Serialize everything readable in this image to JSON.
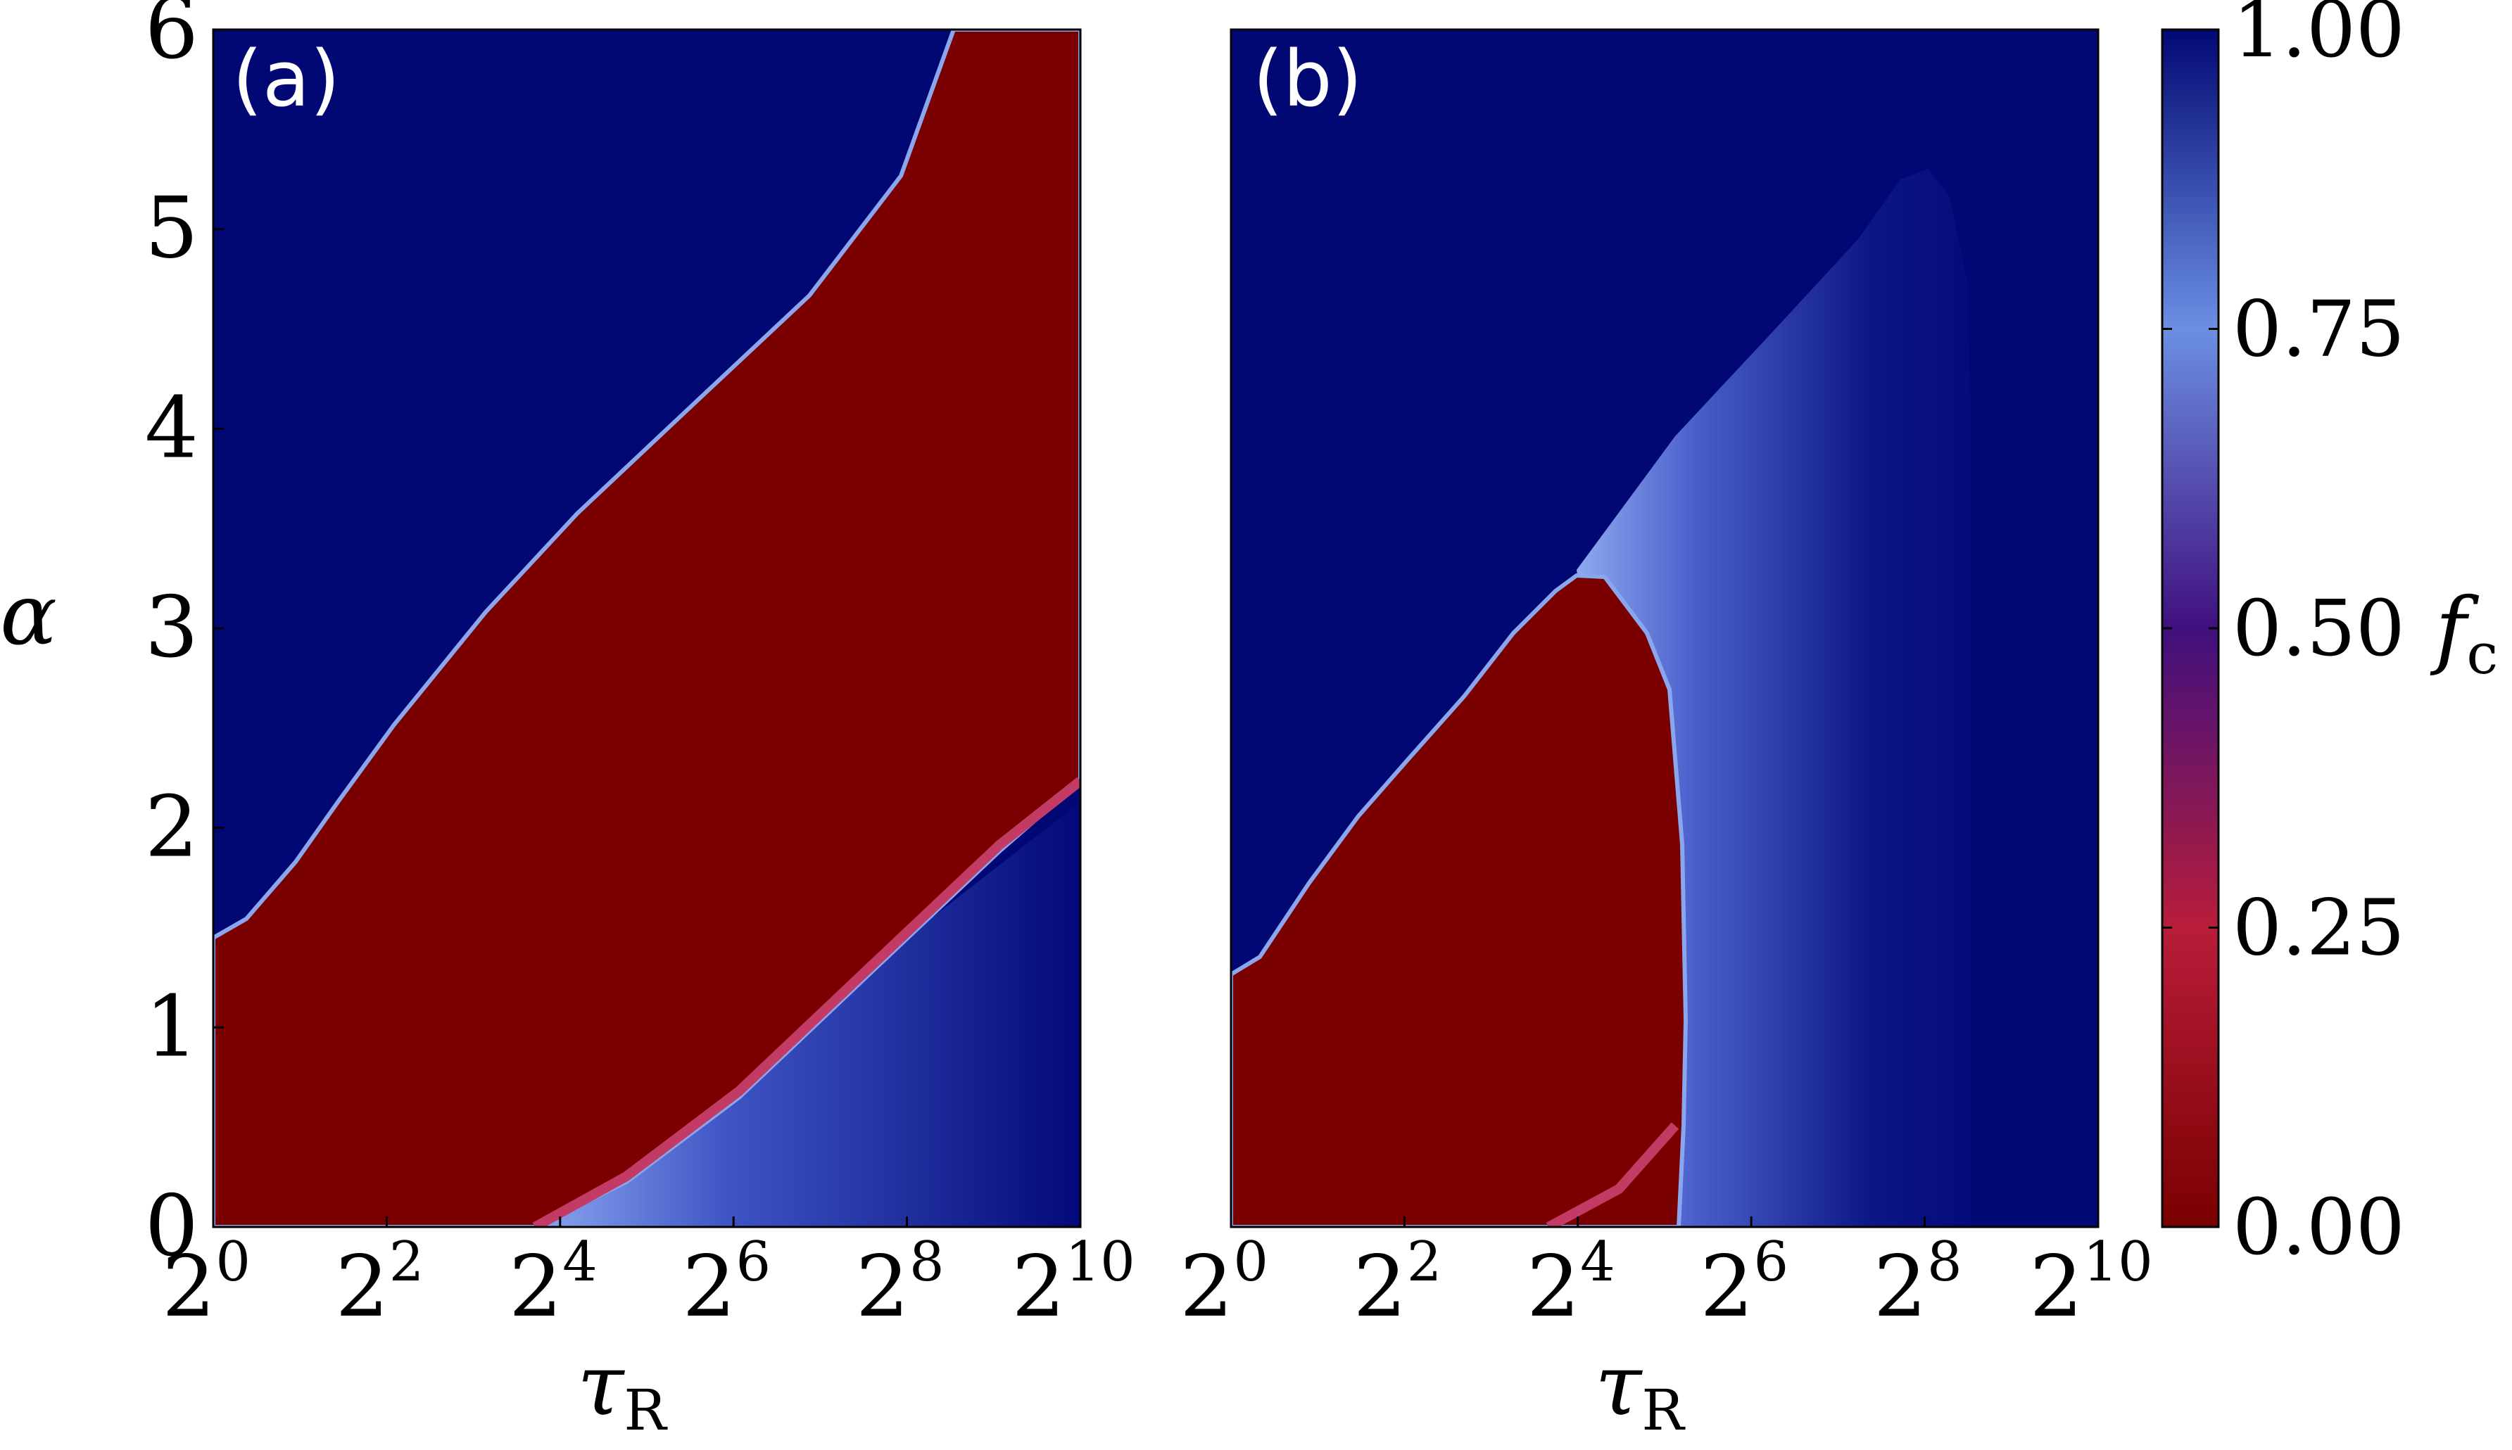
{
  "chart_data": {
    "type": "heatmap",
    "colorbar": {
      "label": "f",
      "label_sub": "c",
      "ticks": [
        "0.00",
        "0.25",
        "0.50",
        "0.75",
        "1.00"
      ],
      "range": [
        0,
        1
      ],
      "colormap": [
        {
          "value": 0.0,
          "color": "#7a0000"
        },
        {
          "value": 0.25,
          "color": "#b81d3a"
        },
        {
          "value": 0.5,
          "color": "#40107e"
        },
        {
          "value": 0.75,
          "color": "#6b8fe3"
        },
        {
          "value": 1.0,
          "color": "#020873"
        }
      ]
    },
    "panels": [
      {
        "label": "(a)",
        "x_axis": {
          "label": "τ",
          "label_sub": "R",
          "scale": "log2",
          "range": [
            1,
            1024
          ],
          "ticks": [
            {
              "base": "2",
              "exp": "0"
            },
            {
              "base": "2",
              "exp": "2"
            },
            {
              "base": "2",
              "exp": "4"
            },
            {
              "base": "2",
              "exp": "6"
            },
            {
              "base": "2",
              "exp": "8"
            },
            {
              "base": "2",
              "exp": "10"
            }
          ]
        },
        "y_axis": {
          "label": "α",
          "range": [
            0,
            6
          ],
          "ticks": [
            "0",
            "1",
            "2",
            "3",
            "4",
            "5",
            "6"
          ]
        },
        "regions": [
          {
            "name": "upper",
            "f_c": 1.0
          },
          {
            "name": "band",
            "f_c": 0.0,
            "upper_boundary": [
              [
                1,
                1.45
              ],
              [
                4,
                2.4
              ],
              [
                16,
                3.5
              ],
              [
                64,
                4.65
              ],
              [
                256,
                5.55
              ],
              [
                362,
                6.0
              ]
            ],
            "lower_boundary": [
              [
                11,
                0.0
              ],
              [
                32,
                0.55
              ],
              [
                128,
                1.15
              ],
              [
                1024,
                2.1
              ]
            ]
          },
          {
            "name": "lower",
            "f_c_from": 0.75,
            "f_c_to": 1.0
          }
        ]
      },
      {
        "label": "(b)",
        "x_axis": {
          "label": "τ",
          "label_sub": "R",
          "scale": "log2",
          "range": [
            1,
            1024
          ],
          "ticks": [
            {
              "base": "2",
              "exp": "0"
            },
            {
              "base": "2",
              "exp": "2"
            },
            {
              "base": "2",
              "exp": "4"
            },
            {
              "base": "2",
              "exp": "6"
            },
            {
              "base": "2",
              "exp": "8"
            },
            {
              "base": "2",
              "exp": "10"
            }
          ]
        },
        "y_axis": {
          "label": "",
          "range": [
            0,
            6
          ],
          "ticks": []
        },
        "regions": [
          {
            "name": "upper",
            "f_c": 1.0
          },
          {
            "name": "lobe",
            "f_c": 0.0,
            "boundary": [
              [
                1,
                1.35
              ],
              [
                4,
                2.4
              ],
              [
                16,
                3.25
              ],
              [
                24,
                3.05
              ],
              [
                32,
                1.5
              ],
              [
                33,
                0.5
              ],
              [
                32,
                0.0
              ]
            ]
          },
          {
            "name": "tongue",
            "f_c_from": 0.75,
            "f_c_to": 0.98,
            "apex": [
              256,
              5.3
            ]
          }
        ]
      }
    ]
  }
}
